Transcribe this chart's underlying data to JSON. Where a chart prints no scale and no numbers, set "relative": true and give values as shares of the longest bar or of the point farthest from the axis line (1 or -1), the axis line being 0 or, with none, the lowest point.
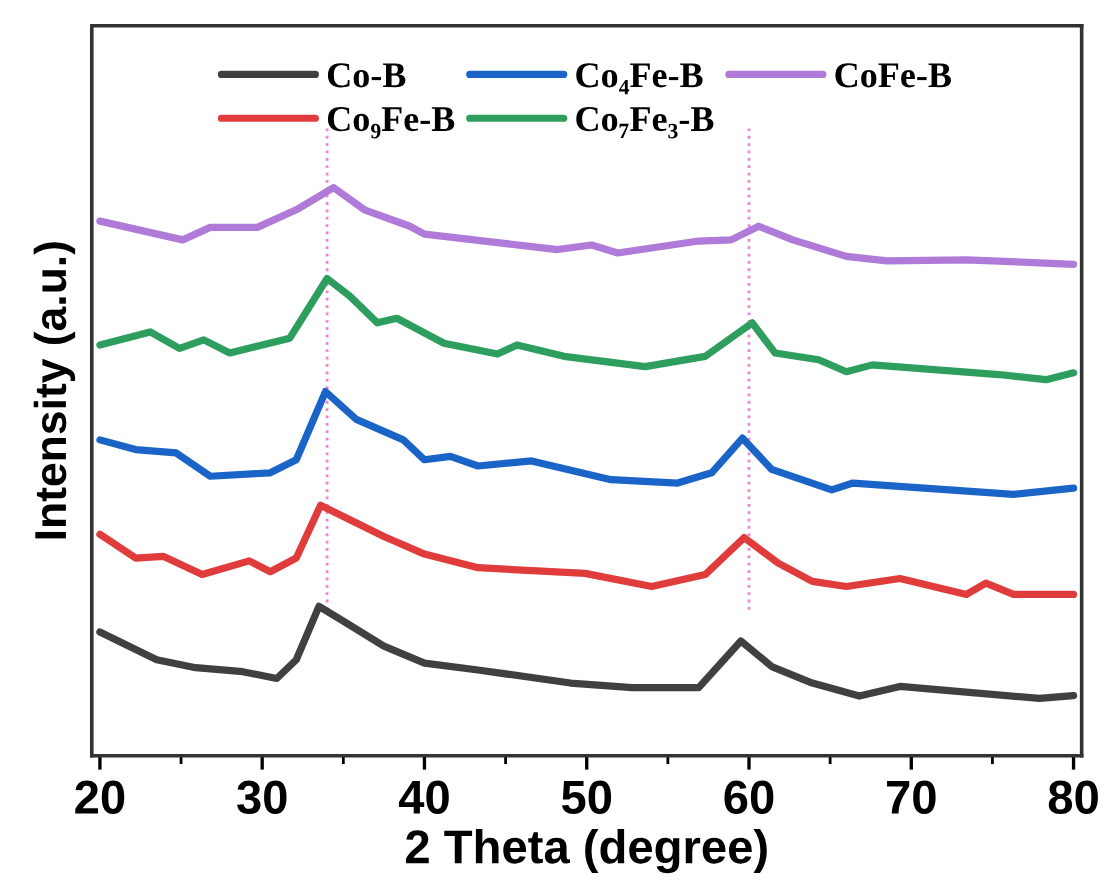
{
  "chart_data": {
    "type": "line",
    "relative": true,
    "xlabel": "2 Theta (degree)",
    "ylabel": "Intensity (a.u.)",
    "xlim": [
      19.5,
      80.5
    ],
    "xticks": [
      20,
      30,
      40,
      50,
      60,
      70,
      80
    ],
    "grid": false,
    "legend": "top",
    "line_style": "solid",
    "marker": "none",
    "tick_labels": "x",
    "ref_lines": [
      {
        "axis": "x",
        "value": 34,
        "color": "#e888d0",
        "line_style": "dotted"
      },
      {
        "axis": "x",
        "value": 60,
        "color": "#e888d0",
        "line_style": "dotted"
      }
    ],
    "series": [
      {
        "name": "Co-B",
        "color": "#404040",
        "x": [
          20,
          23.5,
          25.9,
          28.8,
          30.9,
          32.1,
          33.5,
          35.0,
          37.5,
          40.0,
          43.3,
          49.0,
          52.8,
          56.9,
          59.5,
          61.4,
          63.9,
          66.8,
          69.3,
          77.9,
          80
        ],
        "values": [
          0.218,
          0.169,
          0.155,
          0.148,
          0.136,
          0.169,
          0.263,
          0.237,
          0.193,
          0.163,
          0.151,
          0.128,
          0.12,
          0.12,
          0.202,
          0.157,
          0.128,
          0.105,
          0.122,
          0.101,
          0.106
        ]
      },
      {
        "name": "Co₉Fe-B",
        "color": "#e03c3c",
        "x": [
          20,
          22.2,
          23.9,
          26.3,
          29.2,
          30.5,
          32.1,
          33.6,
          35.0,
          37.5,
          40.0,
          43.3,
          49.9,
          54.0,
          57.3,
          59.7,
          61.8,
          63.9,
          66.0,
          69.3,
          73.4,
          74.6,
          76.3,
          80
        ],
        "values": [
          0.39,
          0.348,
          0.351,
          0.319,
          0.343,
          0.324,
          0.348,
          0.441,
          0.421,
          0.386,
          0.355,
          0.331,
          0.321,
          0.298,
          0.319,
          0.384,
          0.339,
          0.307,
          0.298,
          0.312,
          0.284,
          0.304,
          0.284,
          0.284
        ]
      },
      {
        "name": "Co₄Fe-B",
        "color": "#1a64c8",
        "x": [
          20,
          22.2,
          24.7,
          26.8,
          30.5,
          32.1,
          33.9,
          35.8,
          38.7,
          40.0,
          41.6,
          43.3,
          46.6,
          51.5,
          55.6,
          57.7,
          59.6,
          61.4,
          65.1,
          66.4,
          76.3,
          80
        ],
        "values": [
          0.556,
          0.539,
          0.533,
          0.492,
          0.498,
          0.521,
          0.641,
          0.592,
          0.556,
          0.521,
          0.527,
          0.51,
          0.519,
          0.486,
          0.48,
          0.498,
          0.559,
          0.504,
          0.468,
          0.48,
          0.46,
          0.471
        ]
      },
      {
        "name": "Co₇Fe₃-B",
        "color": "#2e9e5e",
        "x": [
          20,
          23.1,
          24.9,
          26.4,
          28.0,
          31.7,
          34.0,
          35.4,
          37.1,
          38.3,
          41.2,
          44.5,
          45.7,
          48.6,
          53.6,
          57.3,
          60.2,
          61.6,
          64.3,
          66.0,
          67.6,
          75.4,
          78.3,
          80
        ],
        "values": [
          0.723,
          0.746,
          0.717,
          0.732,
          0.709,
          0.735,
          0.84,
          0.809,
          0.762,
          0.77,
          0.726,
          0.707,
          0.723,
          0.703,
          0.685,
          0.703,
          0.762,
          0.709,
          0.697,
          0.676,
          0.688,
          0.671,
          0.662,
          0.674
        ]
      },
      {
        "name": "CoFe-B",
        "color": "#b07ad8",
        "x": [
          20,
          25.1,
          26.8,
          29.7,
          32.1,
          34.4,
          36.3,
          39.1,
          40.0,
          44.9,
          48.2,
          50.3,
          51.9,
          56.9,
          58.9,
          60.6,
          62.7,
          66.0,
          68.5,
          73.4,
          80
        ],
        "values": [
          0.941,
          0.908,
          0.93,
          0.93,
          0.961,
          1.0,
          0.961,
          0.932,
          0.918,
          0.902,
          0.891,
          0.899,
          0.885,
          0.906,
          0.908,
          0.932,
          0.908,
          0.879,
          0.871,
          0.873,
          0.865
        ]
      }
    ]
  }
}
